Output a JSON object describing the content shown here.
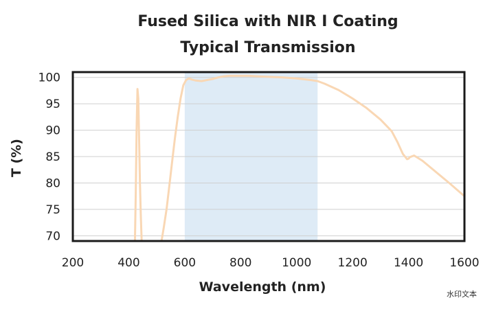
{
  "chart_data": {
    "type": "line",
    "title": "Fused Silica with NIR I Coating",
    "subtitle": "Typical Transmission",
    "xlabel": "Wavelength (nm)",
    "ylabel": "T (%)",
    "xlim": [
      200,
      1600
    ],
    "ylim": [
      69,
      101
    ],
    "xticks": [
      200,
      400,
      600,
      800,
      1000,
      1200,
      1400,
      1600
    ],
    "yticks": [
      70,
      75,
      80,
      85,
      90,
      95,
      100
    ],
    "grid": true,
    "highlight_band": {
      "x_start": 600,
      "x_end": 1075,
      "color": "#deebf6"
    },
    "line_color": "#f9d7b4",
    "segments": [
      {
        "x": [
          422,
          425,
          428,
          431,
          434,
          437,
          440,
          443,
          446
        ],
        "y": [
          69,
          78,
          90,
          97.8,
          96,
          88,
          80,
          74,
          69
        ]
      },
      {
        "x": [
          517,
          525,
          535,
          545,
          555,
          565,
          575,
          585,
          595,
          605,
          615,
          625,
          640,
          660,
          680,
          700,
          720,
          740,
          760,
          780,
          800,
          830,
          860,
          900,
          950,
          1000,
          1050,
          1075,
          1100,
          1150,
          1200,
          1250,
          1300,
          1340,
          1360,
          1380,
          1395,
          1400,
          1405,
          1420,
          1450,
          1500,
          1550,
          1600
        ],
        "y": [
          69,
          71.5,
          75,
          79.5,
          84,
          88.5,
          92.5,
          96,
          98.5,
          99.5,
          99.8,
          99.6,
          99.4,
          99.3,
          99.5,
          99.7,
          100,
          100.2,
          100.3,
          100.3,
          100.3,
          100.3,
          100.2,
          100.1,
          100,
          99.8,
          99.5,
          99.3,
          98.8,
          97.6,
          96,
          94.2,
          92,
          89.8,
          87.8,
          85.5,
          84.5,
          84.6,
          84.9,
          85.2,
          84.2,
          82,
          79.8,
          77.5
        ]
      }
    ]
  },
  "watermark": "水印文本"
}
